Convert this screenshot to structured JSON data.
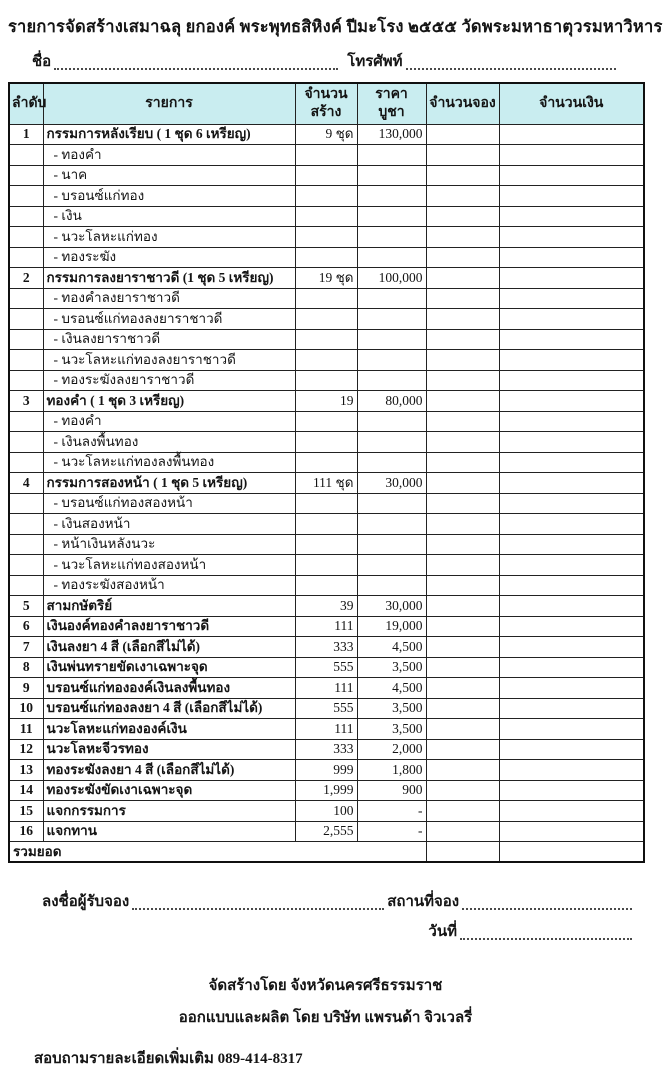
{
  "page": {
    "title": "รายการจัดสร้างเสมาฉลุ ยกองค์ พระพุทธสิหิงค์  ปีมะโรง ๒๕๕๕    วัดพระมหาธาตุวรมหาวิหาร",
    "name_label": "ชื่อ",
    "phone_label": "โทรศัพท์"
  },
  "colors": {
    "header_bg": "#c9edf0",
    "border": "#222222"
  },
  "table": {
    "headers": {
      "no": "ลำดับ",
      "item": "รายการ",
      "qty_line1": "จำนวน",
      "qty_line2": "สร้าง",
      "price_line1": "ราคา",
      "price_line2": "บูชา",
      "reserved": "จำนวนจอง",
      "amount": "จำนวนเงิน"
    },
    "rows": [
      {
        "no": "1",
        "name": "กรรมการหลังเรียบ  ( 1 ชุด 6 เหรียญ)",
        "qty": "9 ชุด",
        "price": "130,000",
        "sub": false
      },
      {
        "no": "",
        "name": "- ทองคำ",
        "qty": "",
        "price": "",
        "sub": true
      },
      {
        "no": "",
        "name": "- นาค",
        "qty": "",
        "price": "",
        "sub": true
      },
      {
        "no": "",
        "name": "- บรอนซ์แก่ทอง",
        "qty": "",
        "price": "",
        "sub": true
      },
      {
        "no": "",
        "name": "- เงิน",
        "qty": "",
        "price": "",
        "sub": true
      },
      {
        "no": "",
        "name": "- นวะโลหะแก่ทอง",
        "qty": "",
        "price": "",
        "sub": true
      },
      {
        "no": "",
        "name": "- ทองระฆัง",
        "qty": "",
        "price": "",
        "sub": true
      },
      {
        "no": "2",
        "name": "กรรมการลงยาราชาวดี (1 ชุด 5 เหรียญ)",
        "qty": "19 ชุด",
        "price": "100,000",
        "sub": false
      },
      {
        "no": "",
        "name": "- ทองคำลงยาราชาวดี",
        "qty": "",
        "price": "",
        "sub": true
      },
      {
        "no": "",
        "name": "- บรอนซ์แก่ทองลงยาราชาวดี",
        "qty": "",
        "price": "",
        "sub": true
      },
      {
        "no": "",
        "name": "- เงินลงยาราชาวดี",
        "qty": "",
        "price": "",
        "sub": true
      },
      {
        "no": "",
        "name": "- นวะโลหะแก่ทองลงยาราชาวดี",
        "qty": "",
        "price": "",
        "sub": true
      },
      {
        "no": "",
        "name": "- ทองระฆังลงยาราชาวดี",
        "qty": "",
        "price": "",
        "sub": true
      },
      {
        "no": "3",
        "name": "ทองคำ ( 1 ชุด 3 เหรียญ)",
        "qty": "19",
        "price": "80,000",
        "sub": false
      },
      {
        "no": "",
        "name": "- ทองคำ",
        "qty": "",
        "price": "",
        "sub": true
      },
      {
        "no": "",
        "name": "- เงินลงพื้นทอง",
        "qty": "",
        "price": "",
        "sub": true
      },
      {
        "no": "",
        "name": "- นวะโลหะแก่ทองลงพื้นทอง",
        "qty": "",
        "price": "",
        "sub": true
      },
      {
        "no": "4",
        "name": "กรรมการสองหน้า ( 1 ชุด 5 เหรียญ)",
        "qty": "111 ชุด",
        "price": "30,000",
        "sub": false
      },
      {
        "no": "",
        "name": "- บรอนซ์แก่ทองสองหน้า",
        "qty": "",
        "price": "",
        "sub": true
      },
      {
        "no": "",
        "name": "- เงินสองหน้า",
        "qty": "",
        "price": "",
        "sub": true
      },
      {
        "no": "",
        "name": "- หน้าเงินหลังนวะ",
        "qty": "",
        "price": "",
        "sub": true
      },
      {
        "no": "",
        "name": "- นวะโลหะแก่ทองสองหน้า",
        "qty": "",
        "price": "",
        "sub": true
      },
      {
        "no": "",
        "name": "- ทองระฆังสองหน้า",
        "qty": "",
        "price": "",
        "sub": true
      },
      {
        "no": "5",
        "name": "สามกษัตริย์",
        "qty": "39",
        "price": "30,000",
        "sub": false
      },
      {
        "no": "6",
        "name": "เงินองค์ทองคำลงยาราชาวดี",
        "qty": "111",
        "price": "19,000",
        "sub": false
      },
      {
        "no": "7",
        "name": "เงินลงยา 4 สี   (เลือกสีไม่ได้)",
        "qty": "333",
        "price": "4,500",
        "sub": false
      },
      {
        "no": "8",
        "name": "เงินพ่นทรายขัดเงาเฉพาะจุด",
        "qty": "555",
        "price": "3,500",
        "sub": false
      },
      {
        "no": "9",
        "name": "บรอนซ์แก่ทององค์เงินลงพื้นทอง",
        "qty": "111",
        "price": "4,500",
        "sub": false
      },
      {
        "no": "10",
        "name": "บรอนซ์แก่ทองลงยา 4 สี (เลือกสีไม่ได้)",
        "qty": "555",
        "price": "3,500",
        "sub": false
      },
      {
        "no": "11",
        "name": "นวะโลหะแก่ทององค์เงิน",
        "qty": "111",
        "price": "3,500",
        "sub": false
      },
      {
        "no": "12",
        "name": "นวะโลหะจีวรทอง",
        "qty": "333",
        "price": "2,000",
        "sub": false
      },
      {
        "no": "13",
        "name": "ทองระฆังลงยา 4 สี (เลือกสีไม่ได้)",
        "qty": "999",
        "price": "1,800",
        "sub": false
      },
      {
        "no": "14",
        "name": "ทองระฆังขัดเงาเฉพาะจุด",
        "qty": "1,999",
        "price": "900",
        "sub": false
      },
      {
        "no": "15",
        "name": "แจกกรรมการ",
        "qty": "100",
        "price": "-",
        "sub": false
      },
      {
        "no": "16",
        "name": "แจกทาน",
        "qty": "2,555",
        "price": "-",
        "sub": false
      }
    ],
    "total_label": "รวมยอด"
  },
  "footer": {
    "sign_label": "ลงชื่อผู้รับจอง",
    "place_label": "สถานที่จอง",
    "date_label": "วันที่",
    "made_by": "จัดสร้างโดย จังหวัดนครศรีธรรมราช",
    "designed_by": "ออกแบบและผลิต โดย บริษัท แพรนด้า จิวเวลรี่",
    "contact": "สอบถามรายละเอียดเพิ่มเติม  089-414-8317"
  }
}
